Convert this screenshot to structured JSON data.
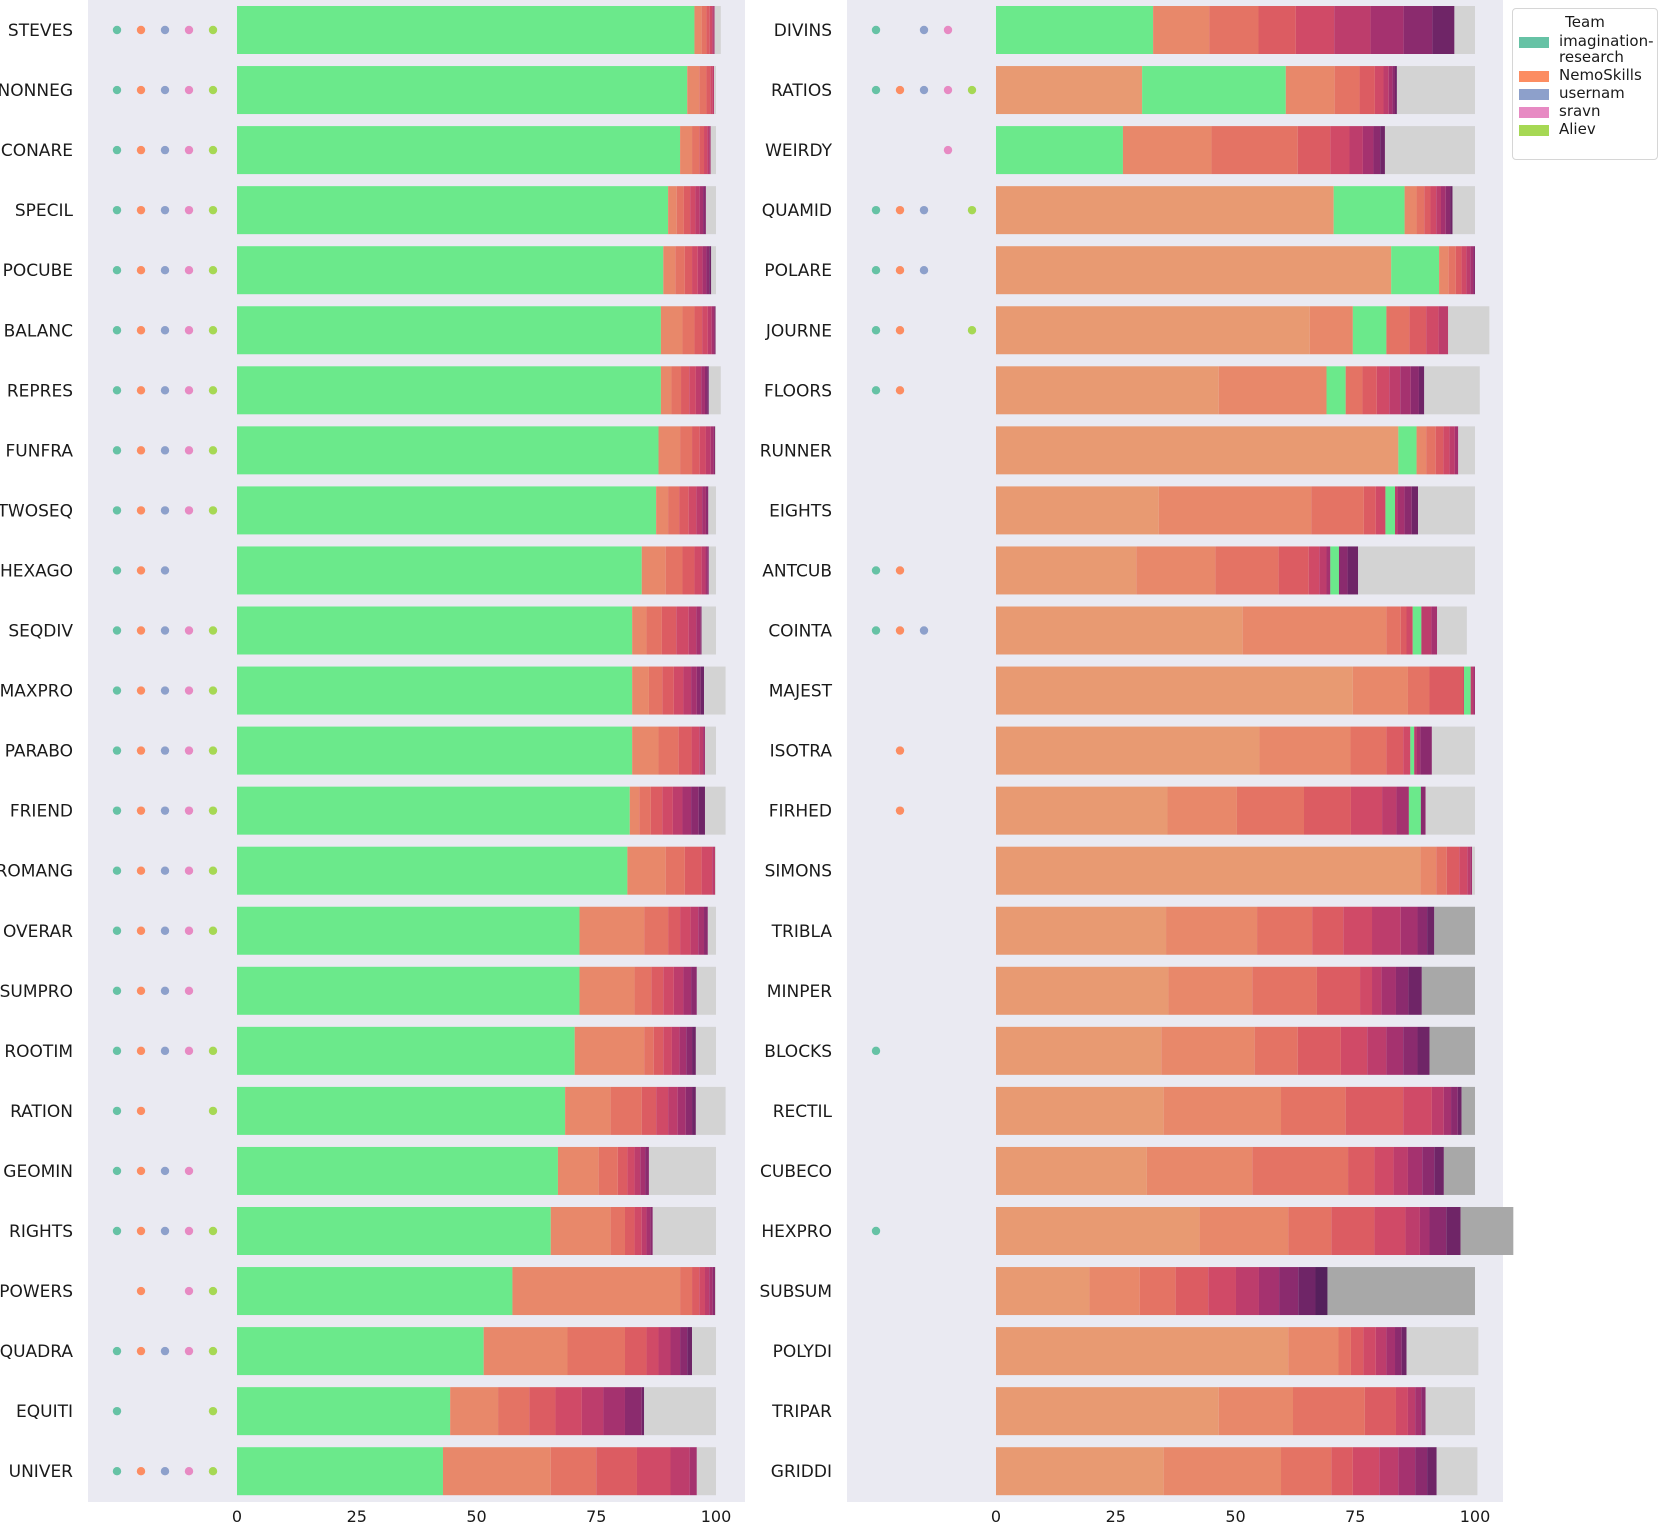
{
  "colors": {
    "panel_bg": "#eaeaf2",
    "gap": "#d3d3d3",
    "gap_dark": "#a8a8a8",
    "team_lead": "#6be98b",
    "team_lead_alt": "#e89a72",
    "team_tail": [
      "#e8886a",
      "#e47364",
      "#dc5c62",
      "#d04a67",
      "#bd3d6c",
      "#a5326f",
      "#8b2b6e",
      "#6f2567",
      "#55205c"
    ],
    "team_dots": [
      "#66c2a5",
      "#fc8d62",
      "#8da0cb",
      "#e78ac3",
      "#a6d854"
    ]
  },
  "legend": {
    "title": "Team",
    "items": [
      {
        "label": "imagination-research",
        "color": "#66c2a5"
      },
      {
        "label": "NemoSkills",
        "color": "#fc8d62"
      },
      {
        "label": "usernam",
        "color": "#8da0cb"
      },
      {
        "label": "sravn",
        "color": "#e78ac3"
      },
      {
        "label": "Aliev",
        "color": "#a6d854"
      }
    ]
  },
  "chart_data": [
    {
      "type": "bar",
      "orientation": "horizontal",
      "stacked": true,
      "xlim": [
        0,
        100
      ],
      "xticks": [
        "0",
        "25",
        "50",
        "75",
        "100"
      ],
      "grid": false,
      "rows": [
        {
          "label": "STEVES",
          "teams": [
            0,
            1,
            2,
            3,
            4
          ],
          "lead": "green",
          "segments": [
            95.5,
            1.5,
            1.0,
            0.7,
            0.5,
            0.3,
            0.2
          ],
          "gap": 1.3
        },
        {
          "label": "NONNEG",
          "teams": [
            0,
            1,
            2,
            3,
            4
          ],
          "lead": "green",
          "segments": [
            94,
            2.5,
            1.5,
            0.8,
            0.5,
            0.3
          ],
          "gap": 0.4
        },
        {
          "label": "CONARE",
          "teams": [
            0,
            1,
            2,
            3,
            4
          ],
          "lead": "green",
          "segments": [
            92.5,
            2.5,
            1.5,
            1.0,
            0.7,
            0.4,
            0.3
          ],
          "gap": 1.1
        },
        {
          "label": "SPECIL",
          "teams": [
            0,
            1,
            2,
            3,
            4
          ],
          "lead": "green",
          "segments": [
            90,
            1.8,
            1.5,
            1.3,
            1.1,
            0.9,
            0.7,
            0.6
          ],
          "gap": 2.1
        },
        {
          "label": "POCUBE",
          "teams": [
            0,
            1,
            2,
            3,
            4
          ],
          "lead": "green",
          "segments": [
            89,
            2.5,
            2.0,
            1.5,
            1.2,
            1.0,
            0.8,
            0.6,
            0.4
          ],
          "gap": 1.0
        },
        {
          "label": "BALANC",
          "teams": [
            0,
            1,
            2,
            3,
            4
          ],
          "lead": "green",
          "segments": [
            88.5,
            4.5,
            2.5,
            1.6,
            1.2,
            0.8,
            0.5,
            0.3
          ],
          "gap": 0.1
        },
        {
          "label": "REPRES",
          "teams": [
            0,
            1,
            2,
            3,
            4
          ],
          "lead": "green",
          "segments": [
            88.5,
            2.2,
            2.0,
            1.7,
            1.4,
            1.1,
            0.8,
            0.5,
            0.3
          ],
          "gap": 2.5
        },
        {
          "label": "FUNFRA",
          "teams": [
            0,
            1,
            2,
            3,
            4
          ],
          "lead": "green",
          "segments": [
            88,
            4.5,
            2.5,
            1.6,
            1.3,
            1.0,
            0.6,
            0.3
          ],
          "gap": 0.2
        },
        {
          "label": "TWOSEQ",
          "teams": [
            0,
            1,
            2,
            3,
            4
          ],
          "lead": "green",
          "segments": [
            87.5,
            2.5,
            2.3,
            2.0,
            1.6,
            1.2,
            0.8,
            0.5
          ],
          "gap": 1.6
        },
        {
          "label": "HEXAGO",
          "teams": [
            0,
            1,
            2
          ],
          "lead": "green",
          "segments": [
            84.5,
            5.0,
            3.5,
            2.5,
            1.5,
            0.8,
            0.4,
            0.3
          ],
          "gap": 1.5
        },
        {
          "label": "SEQDIV",
          "teams": [
            0,
            1,
            2,
            3,
            4
          ],
          "lead": "green",
          "segments": [
            82.5,
            3.0,
            3.2,
            3.0,
            2.6,
            1.6,
            0.8,
            0.3
          ],
          "gap": 3.0
        },
        {
          "label": "MAXPRO",
          "teams": [
            0,
            1,
            2,
            3,
            4
          ],
          "lead": "green",
          "segments": [
            82.5,
            3.5,
            2.8,
            2.4,
            2.0,
            1.6,
            1.2,
            0.8,
            0.7
          ],
          "gap": 4.5
        },
        {
          "label": "PARABO",
          "teams": [
            0,
            1,
            2,
            3,
            4
          ],
          "lead": "green",
          "segments": [
            82.5,
            5.5,
            4.2,
            2.7,
            1.6,
            0.8,
            0.4
          ],
          "gap": 2.3
        },
        {
          "label": "FRIEND",
          "teams": [
            0,
            1,
            2,
            3,
            4
          ],
          "lead": "green",
          "segments": [
            82,
            2.0,
            2.4,
            2.4,
            2.2,
            2.0,
            1.8,
            1.6,
            1.3
          ],
          "gap": 4.3
        },
        {
          "label": "ROMANG",
          "teams": [
            0,
            1,
            2,
            3,
            4
          ],
          "lead": "green",
          "segments": [
            81.5,
            8.0,
            4.0,
            3.5,
            2.2,
            0.6
          ],
          "gap": 0.2
        },
        {
          "label": "OVERAR",
          "teams": [
            0,
            1,
            2,
            3,
            4
          ],
          "lead": "green",
          "segments": [
            71.5,
            13.5,
            5.0,
            2.5,
            2.2,
            1.6,
            1.2,
            0.8
          ],
          "gap": 1.7
        },
        {
          "label": "SUMPRO",
          "teams": [
            0,
            1,
            2,
            3
          ],
          "lead": "green",
          "segments": [
            71.5,
            11.5,
            3.5,
            2.5,
            2.2,
            2.0,
            1.6,
            1.2
          ],
          "gap": 4.0
        },
        {
          "label": "ROOTIM",
          "teams": [
            0,
            1,
            2,
            3,
            4
          ],
          "lead": "green",
          "segments": [
            70.5,
            14.5,
            2.0,
            2.0,
            1.8,
            1.6,
            1.4,
            1.2,
            0.8
          ],
          "gap": 4.2
        },
        {
          "label": "RATION",
          "teams": [
            0,
            1,
            4
          ],
          "lead": "green",
          "segments": [
            68.5,
            9.5,
            6.5,
            3.0,
            2.5,
            2.0,
            1.7,
            1.3,
            0.8
          ],
          "gap": 6.2
        },
        {
          "label": "GEOMIN",
          "teams": [
            0,
            1,
            2,
            3
          ],
          "lead": "green",
          "segments": [
            67,
            8.5,
            4.0,
            2.0,
            1.5,
            1.2,
            1.0,
            0.8
          ],
          "gap": 14.0
        },
        {
          "label": "RIGHTS",
          "teams": [
            0,
            1,
            2,
            3,
            4
          ],
          "lead": "green",
          "segments": [
            65.5,
            12.5,
            3.0,
            2.0,
            1.5,
            1.0,
            0.8,
            0.5
          ],
          "gap": 13.2
        },
        {
          "label": "POWERS",
          "teams": [
            1,
            3,
            4
          ],
          "lead": "green",
          "segments": [
            57.5,
            35.0,
            2.5,
            1.5,
            1.2,
            0.9,
            0.7,
            0.5
          ],
          "gap": 0.2
        },
        {
          "label": "QUADRA",
          "teams": [
            0,
            1,
            2,
            3,
            4
          ],
          "lead": "green",
          "segments": [
            51.5,
            17.5,
            12.0,
            4.5,
            2.5,
            2.5,
            2.0,
            1.5,
            1.0
          ],
          "gap": 5.0
        },
        {
          "label": "EQUITI",
          "teams": [
            0,
            4
          ],
          "lead": "green",
          "segments": [
            44.5,
            10.0,
            6.5,
            5.5,
            5.5,
            4.5,
            4.5,
            3.5,
            0.5
          ],
          "gap": 15.0
        },
        {
          "label": "UNIVER",
          "teams": [
            0,
            1,
            2,
            3,
            4
          ],
          "lead": "green",
          "segments": [
            43.0,
            22.5,
            9.5,
            8.5,
            7.0,
            4.0,
            1.5
          ],
          "gap": 4.0
        }
      ]
    },
    {
      "type": "bar",
      "orientation": "horizontal",
      "stacked": true,
      "xlim": [
        0,
        100
      ],
      "xticks": [
        "0",
        "25",
        "50",
        "75",
        "100"
      ],
      "grid": false,
      "rows": [
        {
          "label": "DIVINS",
          "teams": [
            0,
            2,
            3
          ],
          "lead": "green",
          "segments": [
            32.8,
            11.7,
            10.3,
            7.8,
            8.0,
            7.6,
            6.9,
            6.0,
            4.6
          ],
          "gap": 4.3
        },
        {
          "label": "RATIOS",
          "teams": [
            0,
            1,
            2,
            3,
            4
          ],
          "lead": "orange",
          "green_at": 1,
          "segments": [
            30.5,
            30.0,
            10.2,
            5.2,
            3.2,
            1.8,
            1.1,
            0.8,
            0.5,
            0.4
          ],
          "gap": 16.3
        },
        {
          "label": "WEIRDY",
          "teams": [
            3
          ],
          "lead": "green",
          "segments": [
            26.5,
            18.5,
            18.0,
            6.8,
            4.0,
            2.8,
            2.2,
            1.4,
            1.0
          ],
          "gap": 18.8
        },
        {
          "label": "QUAMID",
          "teams": [
            0,
            1,
            2,
            4
          ],
          "lead": "orange",
          "green_at": 1,
          "segments": [
            70.5,
            14.8,
            2.5,
            1.6,
            1.3,
            1.2,
            1.0,
            1.0,
            0.9,
            0.5
          ],
          "gap": 4.7
        },
        {
          "label": "POLARE",
          "teams": [
            0,
            1,
            2
          ],
          "lead": "orange",
          "green_at": 1,
          "segments": [
            82.5,
            10.0,
            2.0,
            1.5,
            1.2,
            1.0,
            0.8,
            0.6,
            0.4
          ],
          "gap": 0.0
        },
        {
          "label": "JOURNE",
          "teams": [
            0,
            1,
            4
          ],
          "lead": "orange",
          "green_at": 2,
          "segments": [
            65.5,
            9.0,
            7.0,
            4.8,
            3.5,
            2.6,
            2.0
          ],
          "gap": 8.6
        },
        {
          "label": "FLOORS",
          "teams": [
            0,
            1
          ],
          "lead": "orange",
          "green_at": 2,
          "segments": [
            46.5,
            22.5,
            4.0,
            3.5,
            3.0,
            2.6,
            2.3,
            2.2,
            1.7,
            1.1
          ],
          "gap": 11.6
        },
        {
          "label": "RUNNER",
          "teams": [],
          "lead": "orange",
          "green_at": 1,
          "segments": [
            84.0,
            3.8,
            2.0,
            2.0,
            1.6,
            1.3,
            1.1,
            0.7
          ],
          "gap": 3.5
        },
        {
          "label": "EIGHTS",
          "teams": [],
          "lead": "orange",
          "green_at": 5,
          "segments": [
            34.0,
            31.8,
            11.0,
            2.5,
            2.0,
            2.0,
            0.5,
            1.5,
            1.5,
            1.3
          ],
          "gap": 11.9
        },
        {
          "label": "ANTCUB",
          "teams": [
            0,
            1
          ],
          "lead": "orange",
          "green_at": 7,
          "segments": [
            29.3,
            16.5,
            13.2,
            6.3,
            2.2,
            1.5,
            0.8,
            1.8,
            1.8,
            2.2
          ],
          "gap": 24.4
        },
        {
          "label": "COINTA",
          "teams": [
            0,
            1,
            2
          ],
          "lead": "orange",
          "green_at": 5,
          "segments": [
            51.5,
            30.0,
            3.0,
            1.2,
            1.3,
            1.8,
            2.1,
            1.2
          ],
          "gap": 6.2
        },
        {
          "label": "MAJEST",
          "teams": [],
          "lead": "orange",
          "green_at": 5,
          "segments": [
            74.5,
            11.5,
            4.5,
            7.0,
            0.2,
            1.4,
            0.5,
            0.4
          ],
          "gap": 0.0
        },
        {
          "label": "ISOTRA",
          "teams": [
            1
          ],
          "lead": "orange",
          "green_at": 5,
          "segments": [
            55.0,
            19.0,
            7.5,
            3.5,
            1.5,
            0.8,
            0.5,
            0.8,
            2.4
          ],
          "gap": 9.0
        },
        {
          "label": "FIRHED",
          "teams": [
            1
          ],
          "lead": "orange",
          "green_at": 7,
          "segments": [
            35.8,
            14.5,
            14.0,
            9.8,
            6.5,
            3.0,
            2.6,
            2.5,
            1.0
          ],
          "gap": 10.3
        },
        {
          "label": "SIMONS",
          "teams": [],
          "lead": "orange",
          "segments": [
            88.6,
            3.3,
            2.2,
            2.6,
            1.7,
            0.6,
            0.4
          ],
          "gap": 0.6
        },
        {
          "label": "TRIBLA",
          "teams": [],
          "lead": "orange",
          "segments": [
            35.5,
            19.0,
            11.5,
            6.5,
            6.0,
            6.0,
            3.5,
            2.0,
            1.5
          ],
          "dark_gap": true,
          "gap": 8.5
        },
        {
          "label": "MINPER",
          "teams": [],
          "lead": "orange",
          "segments": [
            36.0,
            17.5,
            13.5,
            9.0,
            2.5,
            2.0,
            3.0,
            2.6,
            2.8
          ],
          "dark_gap": true,
          "gap": 11.1
        },
        {
          "label": "BLOCKS",
          "teams": [
            0
          ],
          "lead": "orange",
          "segments": [
            34.5,
            19.5,
            9.0,
            9.0,
            5.5,
            4.0,
            3.5,
            3.0,
            2.5
          ],
          "dark_gap": true,
          "gap": 9.5
        },
        {
          "label": "RECTIL",
          "teams": [],
          "lead": "orange",
          "segments": [
            35.0,
            24.5,
            13.5,
            12.0,
            6.0,
            2.5,
            1.5,
            1.4,
            0.8
          ],
          "dark_gap": true,
          "gap": 2.8
        },
        {
          "label": "CUBECO",
          "teams": [],
          "lead": "orange",
          "segments": [
            31.5,
            22.0,
            20.0,
            5.5,
            4.0,
            3.0,
            3.0,
            2.5,
            2.0
          ],
          "dark_gap": true,
          "gap": 6.5
        },
        {
          "label": "HEXPRO",
          "teams": [
            0
          ],
          "lead": "orange",
          "segments": [
            42.5,
            18.5,
            9.0,
            9.0,
            6.5,
            3.0,
            2.0,
            3.5,
            3.0
          ],
          "dark_gap": true,
          "gap": 11.0
        },
        {
          "label": "SUBSUM",
          "teams": [],
          "lead": "orange",
          "segments": [
            19.5,
            10.5,
            7.5,
            6.8,
            5.8,
            4.8,
            4.2,
            4.0,
            3.6,
            2.5
          ],
          "dark_gap": true,
          "gap": 30.8
        },
        {
          "label": "POLYDI",
          "teams": [],
          "lead": "orange",
          "segments": [
            61.0,
            10.5,
            2.6,
            2.6,
            2.6,
            2.2,
            1.8,
            1.4,
            1.0
          ],
          "gap": 15.0
        },
        {
          "label": "TRIPAR",
          "teams": [],
          "lead": "orange",
          "segments": [
            46.5,
            15.5,
            15.0,
            6.5,
            2.5,
            1.5,
            1.3,
            0.9
          ],
          "gap": 10.3
        },
        {
          "label": "GRIDDI",
          "teams": [],
          "lead": "orange",
          "segments": [
            35.0,
            24.5,
            10.5,
            4.5,
            5.5,
            4.0,
            3.5,
            2.5,
            2.0
          ],
          "gap": 8.5
        }
      ]
    }
  ]
}
